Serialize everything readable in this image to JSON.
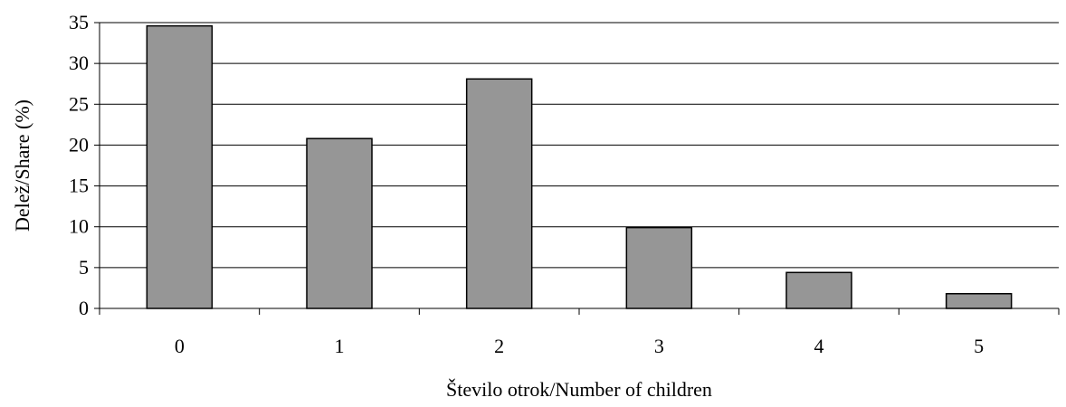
{
  "chart_data": {
    "type": "bar",
    "categories": [
      "0",
      "1",
      "2",
      "3",
      "4",
      "5"
    ],
    "values": [
      34.6,
      20.8,
      28.1,
      9.9,
      4.4,
      1.8
    ],
    "xlabel": "Število otrok/Number of children",
    "ylabel": "Delež/Share (%)",
    "ylim": [
      0,
      35
    ],
    "yticks": [
      "0",
      "5",
      "10",
      "15",
      "20",
      "25",
      "30",
      "35"
    ],
    "grid": true,
    "bar_color": "#969696",
    "bar_outline": "#000000",
    "grid_color": "#000000"
  }
}
